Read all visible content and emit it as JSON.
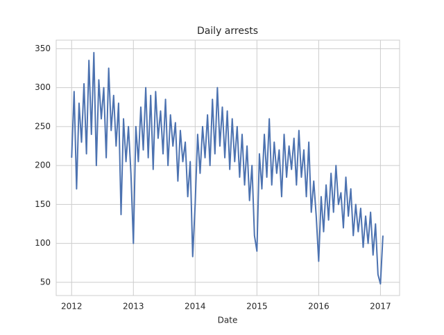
{
  "chart_data": {
    "type": "line",
    "title": "Daily arrests",
    "x_label": "Date",
    "x": [
      2012.0,
      2012.04,
      2012.08,
      2012.12,
      2012.16,
      2012.2,
      2012.24,
      2012.28,
      2012.32,
      2012.36,
      2012.4,
      2012.44,
      2012.48,
      2012.52,
      2012.56,
      2012.6,
      2012.64,
      2012.68,
      2012.72,
      2012.76,
      2012.8,
      2012.84,
      2012.88,
      2012.92,
      2012.96,
      2013.0,
      2013.04,
      2013.08,
      2013.12,
      2013.16,
      2013.2,
      2013.24,
      2013.28,
      2013.32,
      2013.36,
      2013.4,
      2013.44,
      2013.48,
      2013.52,
      2013.56,
      2013.6,
      2013.64,
      2013.68,
      2013.72,
      2013.76,
      2013.8,
      2013.84,
      2013.88,
      2013.92,
      2013.96,
      2014.0,
      2014.04,
      2014.08,
      2014.12,
      2014.16,
      2014.2,
      2014.24,
      2014.28,
      2014.32,
      2014.36,
      2014.4,
      2014.44,
      2014.48,
      2014.52,
      2014.56,
      2014.6,
      2014.64,
      2014.68,
      2014.72,
      2014.76,
      2014.8,
      2014.84,
      2014.88,
      2014.92,
      2014.96,
      2015.0,
      2015.04,
      2015.08,
      2015.12,
      2015.16,
      2015.2,
      2015.24,
      2015.28,
      2015.32,
      2015.36,
      2015.4,
      2015.44,
      2015.48,
      2015.52,
      2015.56,
      2015.6,
      2015.64,
      2015.68,
      2015.72,
      2015.76,
      2015.8,
      2015.84,
      2015.88,
      2015.92,
      2015.96,
      2016.0,
      2016.04,
      2016.08,
      2016.12,
      2016.16,
      2016.2,
      2016.24,
      2016.28,
      2016.32,
      2016.36,
      2016.4,
      2016.44,
      2016.48,
      2016.52,
      2016.56,
      2016.6,
      2016.64,
      2016.68,
      2016.72,
      2016.76,
      2016.8,
      2016.84,
      2016.88,
      2016.92,
      2016.96,
      2017.0,
      2017.04
    ],
    "values": [
      210,
      295,
      170,
      280,
      230,
      305,
      215,
      335,
      240,
      345,
      200,
      310,
      260,
      300,
      210,
      325,
      245,
      290,
      225,
      280,
      137,
      260,
      205,
      250,
      190,
      100,
      250,
      205,
      275,
      220,
      300,
      210,
      290,
      195,
      295,
      235,
      270,
      215,
      285,
      200,
      265,
      225,
      255,
      180,
      245,
      205,
      230,
      160,
      205,
      83,
      150,
      240,
      190,
      250,
      210,
      265,
      200,
      285,
      215,
      300,
      225,
      275,
      210,
      270,
      195,
      260,
      205,
      250,
      185,
      240,
      175,
      225,
      155,
      200,
      110,
      90,
      215,
      170,
      240,
      185,
      260,
      175,
      230,
      190,
      220,
      160,
      240,
      185,
      225,
      195,
      235,
      175,
      245,
      185,
      220,
      160,
      230,
      140,
      180,
      135,
      77,
      160,
      115,
      175,
      130,
      190,
      140,
      200,
      150,
      165,
      120,
      185,
      135,
      170,
      110,
      150,
      115,
      145,
      95,
      135,
      100,
      140,
      85,
      125,
      60,
      48,
      110
    ],
    "color": "#4c72b0",
    "xlim": [
      2011.75,
      2017.31
    ],
    "xticks": [
      2012,
      2013,
      2014,
      2015,
      2016,
      2017
    ],
    "ylim": [
      33,
      361
    ],
    "yticks": [
      50,
      100,
      150,
      200,
      250,
      300,
      350
    ],
    "grid": true
  }
}
